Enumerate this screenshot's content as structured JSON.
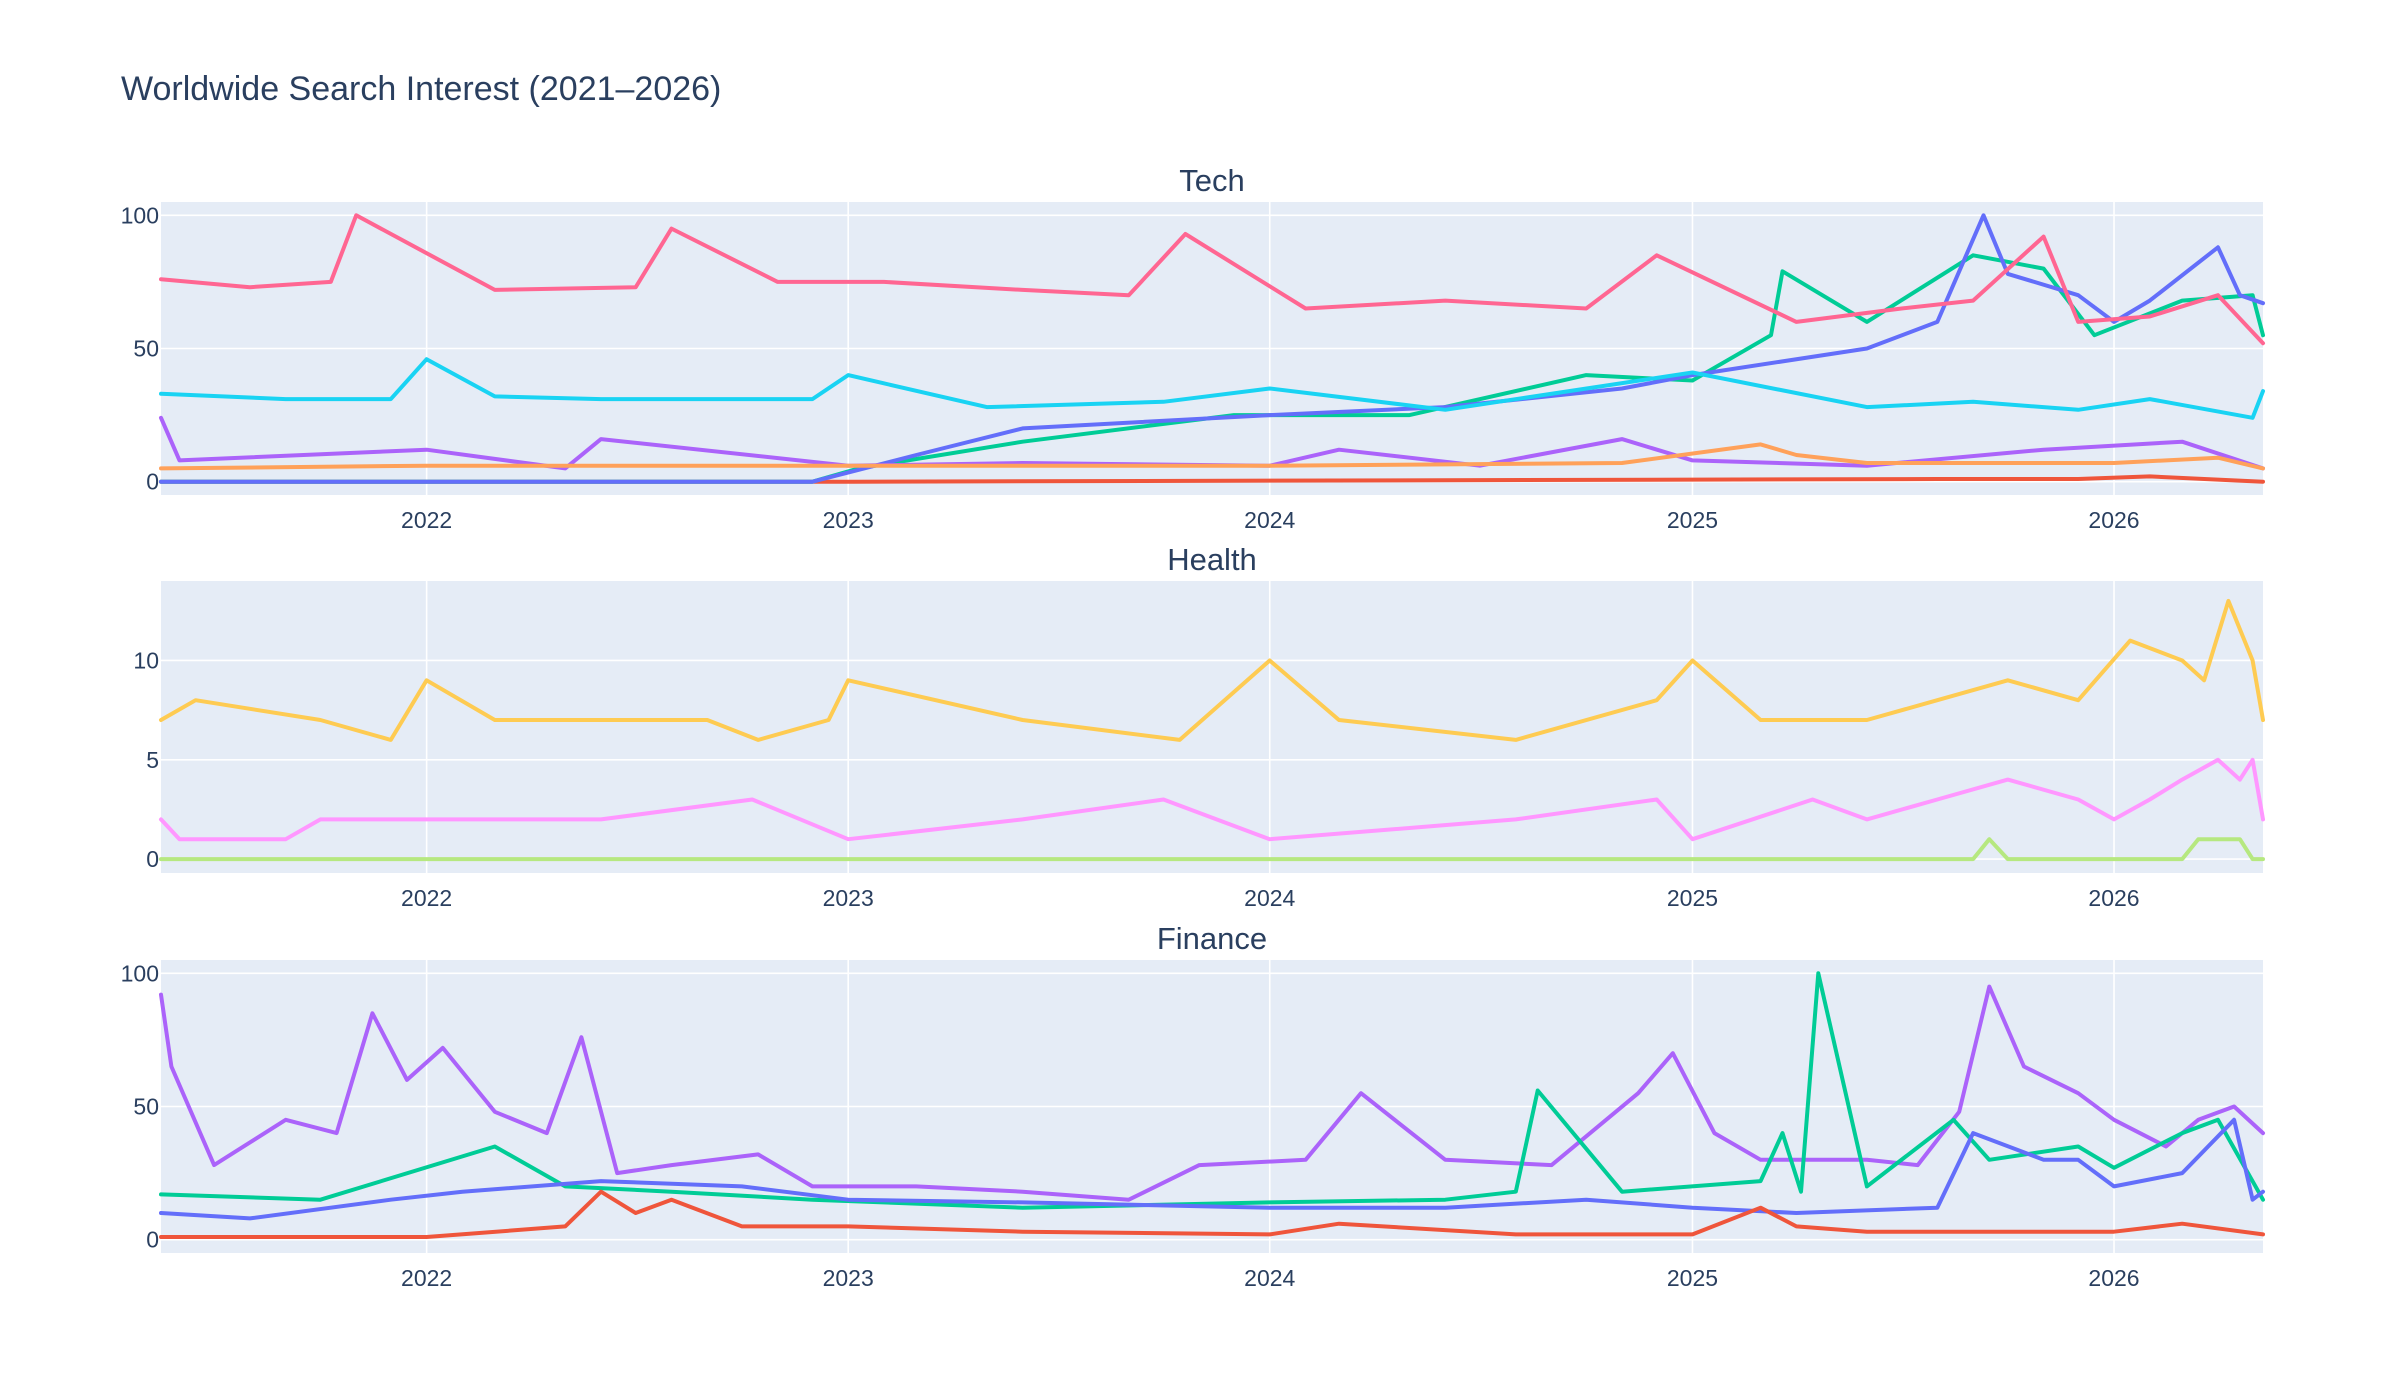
{
  "chart_data": {
    "type": "line",
    "title": "Worldwide Search Interest (2021–2026)",
    "x_range": [
      "2021-05-16",
      "2026-05-10"
    ],
    "x_ticks": [
      "2022",
      "2023",
      "2024",
      "2025",
      "2026"
    ],
    "grid": true,
    "legend": "none",
    "panels": [
      {
        "name": "Tech",
        "ylim": [
          -5,
          105
        ],
        "yticks": [
          0,
          50,
          100
        ],
        "series": [
          {
            "color": "#ef553b",
            "x": [
              "2021-05-16",
              "2022-12-20",
              "2023-01-05",
              "2025-08-01",
              "2025-12-01",
              "2026-02-01",
              "2026-05-10"
            ],
            "values": [
              0,
              0,
              0,
              1,
              1,
              2,
              0
            ]
          },
          {
            "color": "#00cc96",
            "x": [
              "2021-05-16",
              "2022-12-01",
              "2023-01-10",
              "2023-06-01",
              "2023-12-01",
              "2024-05-01",
              "2024-10-01",
              "2025-01-01",
              "2025-03-10",
              "2025-03-20",
              "2025-06-01",
              "2025-09-01",
              "2025-11-01",
              "2025-12-15",
              "2026-03-01",
              "2026-05-01",
              "2026-05-10"
            ],
            "values": [
              0,
              0,
              5,
              15,
              25,
              25,
              40,
              38,
              55,
              79,
              60,
              85,
              80,
              55,
              68,
              70,
              55
            ]
          },
          {
            "color": "#636efa",
            "x": [
              "2021-05-16",
              "2022-12-01",
              "2023-03-01",
              "2023-06-01",
              "2024-01-01",
              "2024-06-01",
              "2024-11-01",
              "2025-01-01",
              "2025-06-01",
              "2025-08-01",
              "2025-09-10",
              "2025-10-01",
              "2025-12-01",
              "2026-01-01",
              "2026-02-01",
              "2026-04-01",
              "2026-04-20",
              "2026-05-10"
            ],
            "values": [
              0,
              0,
              10,
              20,
              25,
              28,
              35,
              40,
              50,
              60,
              100,
              78,
              70,
              60,
              68,
              88,
              70,
              67
            ]
          },
          {
            "color": "#ff6692",
            "x": [
              "2021-05-16",
              "2021-08-01",
              "2021-10-10",
              "2021-11-01",
              "2022-03-01",
              "2022-07-01",
              "2022-08-01",
              "2022-11-01",
              "2023-02-01",
              "2023-06-01",
              "2023-09-01",
              "2023-10-20",
              "2024-02-01",
              "2024-06-01",
              "2024-10-01",
              "2024-12-01",
              "2025-04-01",
              "2025-07-01",
              "2025-09-01",
              "2025-11-01",
              "2025-12-01",
              "2026-02-01",
              "2026-04-01",
              "2026-05-10"
            ],
            "values": [
              76,
              73,
              75,
              100,
              72,
              73,
              95,
              75,
              75,
              72,
              70,
              93,
              65,
              68,
              65,
              85,
              60,
              65,
              68,
              92,
              60,
              62,
              70,
              52
            ]
          },
          {
            "color": "#19d3f3",
            "x": [
              "2021-05-16",
              "2021-09-01",
              "2021-12-01",
              "2022-01-01",
              "2022-03-01",
              "2022-06-01",
              "2022-09-01",
              "2022-12-01",
              "2023-01-01",
              "2023-05-01",
              "2023-10-01",
              "2024-01-01",
              "2024-06-01",
              "2025-01-01",
              "2025-06-01",
              "2025-09-01",
              "2025-12-01",
              "2026-02-01",
              "2026-05-01",
              "2026-05-10"
            ],
            "values": [
              33,
              31,
              31,
              46,
              32,
              31,
              31,
              31,
              40,
              28,
              30,
              35,
              27,
              41,
              28,
              30,
              27,
              31,
              24,
              34
            ]
          },
          {
            "color": "#ab63fa",
            "x": [
              "2021-05-16",
              "2021-06-01",
              "2022-01-01",
              "2022-05-01",
              "2022-06-01",
              "2023-01-01",
              "2023-06-01",
              "2024-01-01",
              "2024-03-01",
              "2024-07-01",
              "2024-11-01",
              "2025-01-01",
              "2025-06-01",
              "2025-11-01",
              "2026-03-01",
              "2026-05-10"
            ],
            "values": [
              24,
              8,
              12,
              5,
              16,
              6,
              7,
              6,
              12,
              6,
              16,
              8,
              6,
              12,
              15,
              5
            ]
          },
          {
            "color": "#ffa15a",
            "x": [
              "2021-05-16",
              "2022-01-01",
              "2023-01-01",
              "2024-01-01",
              "2024-11-01",
              "2025-03-01",
              "2025-04-01",
              "2025-06-01",
              "2026-01-01",
              "2026-04-01",
              "2026-05-10"
            ],
            "values": [
              5,
              6,
              6,
              6,
              7,
              14,
              10,
              7,
              7,
              9,
              5
            ]
          }
        ]
      },
      {
        "name": "Health",
        "ylim": [
          -0.7,
          14
        ],
        "yticks": [
          0,
          5,
          10
        ],
        "series": [
          {
            "color": "#b6e880",
            "x": [
              "2021-05-16",
              "2025-09-01",
              "2025-09-15",
              "2025-10-01",
              "2026-03-01",
              "2026-03-15",
              "2026-04-20",
              "2026-05-01",
              "2026-05-10"
            ],
            "values": [
              0,
              0,
              1,
              0,
              0,
              1,
              1,
              0,
              0
            ]
          },
          {
            "color": "#ff97ff",
            "x": [
              "2021-05-16",
              "2021-06-01",
              "2021-09-01",
              "2021-10-01",
              "2022-06-01",
              "2022-10-10",
              "2023-01-01",
              "2023-06-01",
              "2023-10-01",
              "2024-01-01",
              "2024-08-01",
              "2024-12-01",
              "2025-01-01",
              "2025-04-15",
              "2025-06-01",
              "2025-08-01",
              "2025-10-01",
              "2025-12-01",
              "2026-01-01",
              "2026-02-01",
              "2026-03-01",
              "2026-04-01",
              "2026-04-20",
              "2026-05-01",
              "2026-05-10"
            ],
            "values": [
              2,
              1,
              1,
              2,
              2,
              3,
              1,
              2,
              3,
              1,
              2,
              3,
              1,
              3,
              2,
              3,
              4,
              3,
              2,
              3,
              4,
              5,
              4,
              5,
              2
            ]
          },
          {
            "color": "#fecb52",
            "x": [
              "2021-05-16",
              "2021-06-15",
              "2021-10-01",
              "2021-12-01",
              "2022-01-01",
              "2022-03-01",
              "2022-09-01",
              "2022-10-15",
              "2022-12-15",
              "2023-01-01",
              "2023-06-01",
              "2023-10-15",
              "2024-01-01",
              "2024-03-01",
              "2024-08-01",
              "2024-12-01",
              "2025-01-01",
              "2025-03-01",
              "2025-06-01",
              "2025-08-01",
              "2025-10-01",
              "2025-12-01",
              "2026-01-15",
              "2026-03-01",
              "2026-03-20",
              "2026-04-10",
              "2026-05-01",
              "2026-05-10"
            ],
            "values": [
              7,
              8,
              7,
              6,
              9,
              7,
              7,
              6,
              7,
              9,
              7,
              6,
              10,
              7,
              6,
              8,
              10,
              7,
              7,
              8,
              9,
              8,
              11,
              10,
              9,
              13,
              10,
              7
            ]
          }
        ]
      },
      {
        "name": "Finance",
        "ylim": [
          -5,
          105
        ],
        "yticks": [
          0,
          50,
          100
        ],
        "series": [
          {
            "color": "#ab63fa",
            "x": [
              "2021-05-16",
              "2021-05-25",
              "2021-07-01",
              "2021-09-01",
              "2021-10-15",
              "2021-11-15",
              "2021-12-15",
              "2022-01-15",
              "2022-03-01",
              "2022-04-15",
              "2022-05-15",
              "2022-06-15",
              "2022-08-01",
              "2022-10-15",
              "2022-12-01",
              "2023-03-01",
              "2023-06-01",
              "2023-09-01",
              "2023-11-01",
              "2024-02-01",
              "2024-03-20",
              "2024-06-01",
              "2024-09-01",
              "2024-11-15",
              "2024-12-15",
              "2025-01-20",
              "2025-03-01",
              "2025-06-01",
              "2025-07-15",
              "2025-08-20",
              "2025-09-15",
              "2025-10-15",
              "2025-12-01",
              "2026-01-01",
              "2026-02-15",
              "2026-03-15",
              "2026-04-15",
              "2026-05-10"
            ],
            "values": [
              92,
              65,
              28,
              45,
              40,
              85,
              60,
              72,
              48,
              40,
              76,
              25,
              28,
              32,
              20,
              20,
              18,
              15,
              28,
              30,
              55,
              30,
              28,
              55,
              70,
              40,
              30,
              30,
              28,
              48,
              95,
              65,
              55,
              45,
              35,
              45,
              50,
              40
            ]
          },
          {
            "color": "#00cc96",
            "x": [
              "2021-05-16",
              "2021-10-01",
              "2022-03-01",
              "2022-05-01",
              "2022-08-01",
              "2022-12-01",
              "2023-06-01",
              "2024-01-01",
              "2024-06-01",
              "2024-08-01",
              "2024-08-20",
              "2024-11-01",
              "2025-03-01",
              "2025-03-20",
              "2025-04-05",
              "2025-04-20",
              "2025-06-01",
              "2025-08-15",
              "2025-09-15",
              "2025-12-01",
              "2026-01-01",
              "2026-03-01",
              "2026-04-01",
              "2026-05-10"
            ],
            "values": [
              17,
              15,
              35,
              20,
              18,
              15,
              12,
              14,
              15,
              18,
              56,
              18,
              22,
              40,
              18,
              100,
              20,
              45,
              30,
              35,
              27,
              40,
              45,
              15
            ]
          },
          {
            "color": "#636efa",
            "x": [
              "2021-05-16",
              "2021-08-01",
              "2021-12-01",
              "2022-02-01",
              "2022-06-01",
              "2022-10-01",
              "2023-01-01",
              "2023-06-01",
              "2024-01-01",
              "2024-06-01",
              "2024-10-01",
              "2025-01-01",
              "2025-04-01",
              "2025-08-01",
              "2025-09-01",
              "2025-11-01",
              "2025-12-01",
              "2026-01-01",
              "2026-03-01",
              "2026-04-15",
              "2026-05-01",
              "2026-05-10"
            ],
            "values": [
              10,
              8,
              15,
              18,
              22,
              20,
              15,
              14,
              12,
              12,
              15,
              12,
              10,
              12,
              40,
              30,
              30,
              20,
              25,
              45,
              15,
              18
            ]
          },
          {
            "color": "#ef553b",
            "x": [
              "2021-05-16",
              "2022-01-01",
              "2022-05-01",
              "2022-06-01",
              "2022-07-01",
              "2022-08-01",
              "2022-10-01",
              "2023-01-01",
              "2023-06-01",
              "2024-01-01",
              "2024-03-01",
              "2024-08-01",
              "2025-01-01",
              "2025-03-01",
              "2025-04-01",
              "2025-06-01",
              "2026-01-01",
              "2026-03-01",
              "2026-05-10"
            ],
            "values": [
              1,
              1,
              5,
              18,
              10,
              15,
              5,
              5,
              3,
              2,
              6,
              2,
              2,
              12,
              5,
              3,
              3,
              6,
              2
            ]
          }
        ]
      }
    ]
  }
}
